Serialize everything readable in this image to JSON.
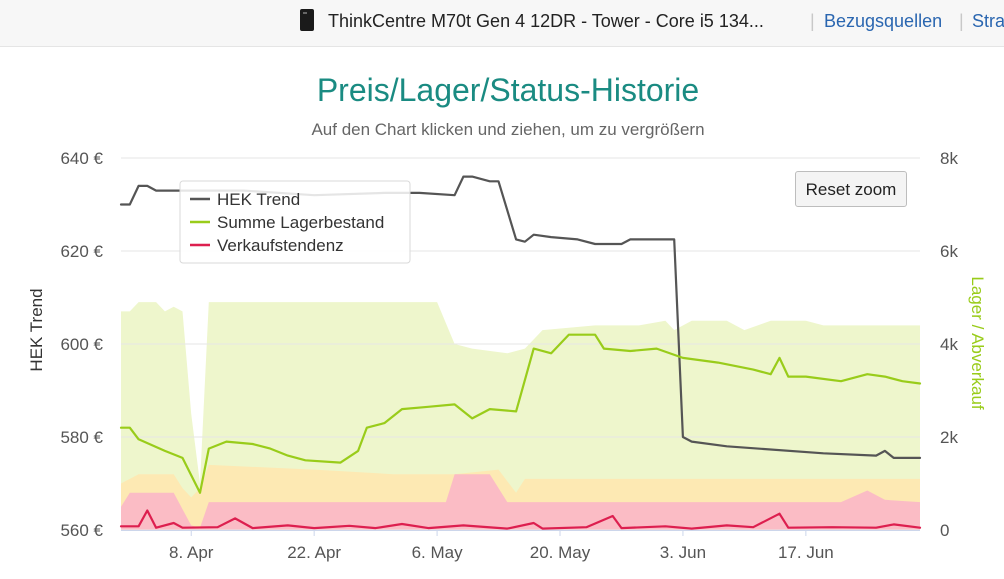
{
  "header": {
    "product_title": "ThinkCentre M70t Gen 4 12DR - Tower - Core i5 134...",
    "link_sources": "Bezugsquellen",
    "link_partial": "Stra"
  },
  "chart_data": {
    "type": "line",
    "title": "Preis/Lager/Status-Historie",
    "subtitle": "Auf den Chart klicken und ziehen, um zu vergrößern",
    "ylabel_left": "HEK Trend",
    "ylabel_right": "Lager / Abverkauf",
    "ylim_left": [
      560,
      640
    ],
    "ylim_right": [
      0,
      8000
    ],
    "left_ticks": [
      {
        "v": 640,
        "label": "640 €"
      },
      {
        "v": 620,
        "label": "620 €"
      },
      {
        "v": 600,
        "label": "600 €"
      },
      {
        "v": 580,
        "label": "580 €"
      },
      {
        "v": 560,
        "label": "560 €"
      }
    ],
    "right_ticks": [
      {
        "v": 8000,
        "label": "8k"
      },
      {
        "v": 6000,
        "label": "6k"
      },
      {
        "v": 4000,
        "label": "4k"
      },
      {
        "v": 2000,
        "label": "2k"
      },
      {
        "v": 0,
        "label": "0"
      }
    ],
    "xlim": [
      "2024-03-31",
      "2024-06-30"
    ],
    "x_ticks": [
      {
        "date": "2024-04-08",
        "label": "8. Apr"
      },
      {
        "date": "2024-04-22",
        "label": "22. Apr"
      },
      {
        "date": "2024-05-06",
        "label": "6. May"
      },
      {
        "date": "2024-05-20",
        "label": "20. May"
      },
      {
        "date": "2024-06-03",
        "label": "3. Jun"
      },
      {
        "date": "2024-06-17",
        "label": "17. Jun"
      }
    ],
    "legend_position": "top-left",
    "reset_zoom_label": "Reset zoom",
    "series": [
      {
        "name": "HEK Trend",
        "axis": "left",
        "color": "#555555",
        "points": [
          [
            "2024-03-31",
            630
          ],
          [
            "2024-04-01",
            630
          ],
          [
            "2024-04-02",
            634
          ],
          [
            "2024-04-03",
            634
          ],
          [
            "2024-04-04",
            633
          ],
          [
            "2024-04-08",
            633
          ],
          [
            "2024-04-14",
            633
          ],
          [
            "2024-04-22",
            632
          ],
          [
            "2024-04-30",
            632.5
          ],
          [
            "2024-05-04",
            632.5
          ],
          [
            "2024-05-08",
            632
          ],
          [
            "2024-05-09",
            636
          ],
          [
            "2024-05-10",
            636
          ],
          [
            "2024-05-11",
            635.5
          ],
          [
            "2024-05-12",
            635
          ],
          [
            "2024-05-13",
            635
          ],
          [
            "2024-05-15",
            622.5
          ],
          [
            "2024-05-16",
            622
          ],
          [
            "2024-05-17",
            623.5
          ],
          [
            "2024-05-19",
            623
          ],
          [
            "2024-05-22",
            622.5
          ],
          [
            "2024-05-24",
            621.5
          ],
          [
            "2024-05-27",
            621.5
          ],
          [
            "2024-05-28",
            622.5
          ],
          [
            "2024-06-01",
            622.5
          ],
          [
            "2024-06-02",
            622.5
          ],
          [
            "2024-06-03",
            580
          ],
          [
            "2024-06-04",
            579
          ],
          [
            "2024-06-08",
            578
          ],
          [
            "2024-06-19",
            576.5
          ],
          [
            "2024-06-25",
            576
          ],
          [
            "2024-06-26",
            577
          ],
          [
            "2024-06-27",
            575.5
          ],
          [
            "2024-06-30",
            575.5
          ]
        ]
      },
      {
        "name": "Summe Lagerbestand",
        "axis": "right",
        "color": "#99cc1a",
        "points": [
          [
            "2024-03-31",
            2200
          ],
          [
            "2024-04-01",
            2200
          ],
          [
            "2024-04-02",
            1950
          ],
          [
            "2024-04-05",
            1700
          ],
          [
            "2024-04-07",
            1550
          ],
          [
            "2024-04-09",
            800
          ],
          [
            "2024-04-10",
            1750
          ],
          [
            "2024-04-12",
            1900
          ],
          [
            "2024-04-15",
            1850
          ],
          [
            "2024-04-17",
            1750
          ],
          [
            "2024-04-19",
            1600
          ],
          [
            "2024-04-21",
            1500
          ],
          [
            "2024-04-25",
            1450
          ],
          [
            "2024-04-27",
            1700
          ],
          [
            "2024-04-28",
            2200
          ],
          [
            "2024-04-30",
            2300
          ],
          [
            "2024-05-02",
            2600
          ],
          [
            "2024-05-05",
            2650
          ],
          [
            "2024-05-08",
            2700
          ],
          [
            "2024-05-10",
            2400
          ],
          [
            "2024-05-12",
            2600
          ],
          [
            "2024-05-15",
            2550
          ],
          [
            "2024-05-17",
            3900
          ],
          [
            "2024-05-19",
            3800
          ],
          [
            "2024-05-21",
            4200
          ],
          [
            "2024-05-24",
            4200
          ],
          [
            "2024-05-25",
            3900
          ],
          [
            "2024-05-28",
            3850
          ],
          [
            "2024-05-31",
            3900
          ],
          [
            "2024-06-03",
            3700
          ],
          [
            "2024-06-07",
            3600
          ],
          [
            "2024-06-11",
            3450
          ],
          [
            "2024-06-13",
            3350
          ],
          [
            "2024-06-14",
            3700
          ],
          [
            "2024-06-15",
            3300
          ],
          [
            "2024-06-17",
            3300
          ],
          [
            "2024-06-21",
            3200
          ],
          [
            "2024-06-24",
            3350
          ],
          [
            "2024-06-26",
            3300
          ],
          [
            "2024-06-28",
            3200
          ],
          [
            "2024-06-30",
            3150
          ]
        ]
      },
      {
        "name": "Verkaufstendenz",
        "axis": "right",
        "color": "#dd1f4f",
        "points": [
          [
            "2024-03-31",
            80
          ],
          [
            "2024-04-02",
            80
          ],
          [
            "2024-04-03",
            420
          ],
          [
            "2024-04-04",
            50
          ],
          [
            "2024-04-06",
            150
          ],
          [
            "2024-04-07",
            50
          ],
          [
            "2024-04-11",
            60
          ],
          [
            "2024-04-13",
            250
          ],
          [
            "2024-04-15",
            40
          ],
          [
            "2024-04-19",
            100
          ],
          [
            "2024-04-22",
            40
          ],
          [
            "2024-04-26",
            90
          ],
          [
            "2024-04-29",
            40
          ],
          [
            "2024-05-02",
            130
          ],
          [
            "2024-05-05",
            40
          ],
          [
            "2024-05-09",
            100
          ],
          [
            "2024-05-14",
            30
          ],
          [
            "2024-05-17",
            150
          ],
          [
            "2024-05-18",
            30
          ],
          [
            "2024-05-23",
            60
          ],
          [
            "2024-05-26",
            300
          ],
          [
            "2024-05-27",
            40
          ],
          [
            "2024-06-01",
            80
          ],
          [
            "2024-06-04",
            30
          ],
          [
            "2024-06-08",
            100
          ],
          [
            "2024-06-11",
            60
          ],
          [
            "2024-06-14",
            350
          ],
          [
            "2024-06-15",
            50
          ],
          [
            "2024-06-20",
            60
          ],
          [
            "2024-06-25",
            50
          ],
          [
            "2024-06-27",
            120
          ],
          [
            "2024-06-30",
            50
          ]
        ]
      }
    ],
    "bands": [
      {
        "color": "#eef6cc",
        "top": [
          [
            "2024-03-31",
            4700
          ],
          [
            "2024-04-01",
            4700
          ],
          [
            "2024-04-02",
            4900
          ],
          [
            "2024-04-04",
            4900
          ],
          [
            "2024-04-05",
            4700
          ],
          [
            "2024-04-06",
            4800
          ],
          [
            "2024-04-07",
            4700
          ],
          [
            "2024-04-08",
            2500
          ],
          [
            "2024-04-09",
            1000
          ],
          [
            "2024-04-10",
            4900
          ],
          [
            "2024-05-01",
            4900
          ],
          [
            "2024-05-06",
            4900
          ],
          [
            "2024-05-08",
            4000
          ],
          [
            "2024-05-10",
            3900
          ],
          [
            "2024-05-14",
            3800
          ],
          [
            "2024-05-16",
            3900
          ],
          [
            "2024-05-18",
            4300
          ],
          [
            "2024-05-24",
            4400
          ],
          [
            "2024-05-29",
            4400
          ],
          [
            "2024-06-01",
            4500
          ],
          [
            "2024-06-02",
            4300
          ],
          [
            "2024-06-04",
            4500
          ],
          [
            "2024-06-08",
            4500
          ],
          [
            "2024-06-10",
            4300
          ],
          [
            "2024-06-13",
            4500
          ],
          [
            "2024-06-17",
            4500
          ],
          [
            "2024-06-19",
            4400
          ],
          [
            "2024-06-30",
            4400
          ]
        ]
      },
      {
        "color": "#fde9b3",
        "top": [
          [
            "2024-03-31",
            1000
          ],
          [
            "2024-04-02",
            1200
          ],
          [
            "2024-04-06",
            1200
          ],
          [
            "2024-04-07",
            900
          ],
          [
            "2024-04-08",
            700
          ],
          [
            "2024-04-09",
            900
          ],
          [
            "2024-04-10",
            1400
          ],
          [
            "2024-04-22",
            1300
          ],
          [
            "2024-05-01",
            1200
          ],
          [
            "2024-05-08",
            1200
          ],
          [
            "2024-05-13",
            1300
          ],
          [
            "2024-05-15",
            800
          ],
          [
            "2024-05-16",
            1100
          ],
          [
            "2024-06-30",
            1100
          ]
        ]
      },
      {
        "color": "#fbbcc5",
        "top": [
          [
            "2024-03-31",
            500
          ],
          [
            "2024-04-01",
            800
          ],
          [
            "2024-04-06",
            800
          ],
          [
            "2024-04-08",
            100
          ],
          [
            "2024-04-09",
            50
          ],
          [
            "2024-04-10",
            600
          ],
          [
            "2024-05-07",
            600
          ],
          [
            "2024-05-08",
            1200
          ],
          [
            "2024-05-12",
            1200
          ],
          [
            "2024-05-14",
            600
          ],
          [
            "2024-06-21",
            600
          ],
          [
            "2024-06-24",
            850
          ],
          [
            "2024-06-26",
            650
          ],
          [
            "2024-06-30",
            600
          ]
        ]
      }
    ]
  }
}
